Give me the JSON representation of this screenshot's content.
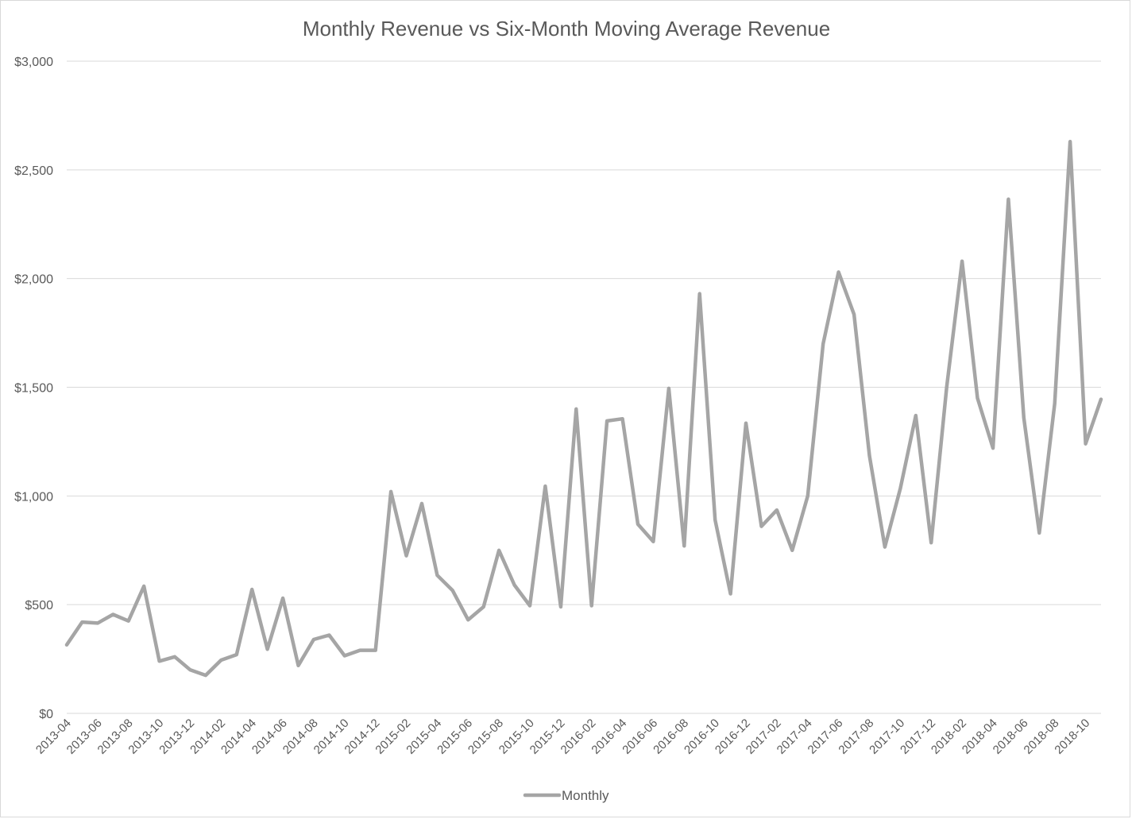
{
  "chart_data": {
    "type": "line",
    "title": "Monthly Revenue vs Six-Month Moving Average Revenue",
    "xlabel": "",
    "ylabel": "",
    "ylim": [
      0,
      3000
    ],
    "yticks": [
      "$0",
      "$500",
      "$1,000",
      "$1,500",
      "$2,000",
      "$2,500",
      "$3,000"
    ],
    "ytick_values": [
      0,
      500,
      1000,
      1500,
      2000,
      2500,
      3000
    ],
    "grid": true,
    "legend_position": "bottom",
    "series_color": "#a5a5a5",
    "x": [
      "2013-04",
      "2013-05",
      "2013-06",
      "2013-07",
      "2013-08",
      "2013-09",
      "2013-10",
      "2013-11",
      "2013-12",
      "2014-01",
      "2014-02",
      "2014-03",
      "2014-04",
      "2014-05",
      "2014-06",
      "2014-07",
      "2014-08",
      "2014-09",
      "2014-10",
      "2014-11",
      "2014-12",
      "2015-01",
      "2015-02",
      "2015-03",
      "2015-04",
      "2015-05",
      "2015-06",
      "2015-07",
      "2015-08",
      "2015-09",
      "2015-10",
      "2015-11",
      "2015-12",
      "2016-01",
      "2016-02",
      "2016-03",
      "2016-04",
      "2016-05",
      "2016-06",
      "2016-07",
      "2016-08",
      "2016-09",
      "2016-10",
      "2016-11",
      "2016-12",
      "2017-01",
      "2017-02",
      "2017-03",
      "2017-04",
      "2017-05",
      "2017-06",
      "2017-07",
      "2017-08",
      "2017-09",
      "2017-10",
      "2017-11",
      "2017-12",
      "2018-01",
      "2018-02",
      "2018-03",
      "2018-04",
      "2018-05",
      "2018-06",
      "2018-07",
      "2018-08",
      "2018-09",
      "2018-10",
      "2018-11"
    ],
    "xtick_labels": [
      "2013-04",
      "2013-06",
      "2013-08",
      "2013-10",
      "2013-12",
      "2014-02",
      "2014-04",
      "2014-06",
      "2014-08",
      "2014-10",
      "2014-12",
      "2015-02",
      "2015-04",
      "2015-06",
      "2015-08",
      "2015-10",
      "2015-12",
      "2016-02",
      "2016-04",
      "2016-06",
      "2016-08",
      "2016-10",
      "2016-12",
      "2017-02",
      "2017-04",
      "2017-06",
      "2017-08",
      "2017-10",
      "2017-12",
      "2018-02",
      "2018-04",
      "2018-06",
      "2018-08",
      "2018-10"
    ],
    "series": [
      {
        "name": "Monthly",
        "values": [
          315,
          420,
          415,
          455,
          425,
          585,
          240,
          260,
          200,
          175,
          245,
          270,
          570,
          295,
          530,
          220,
          340,
          360,
          265,
          290,
          290,
          1020,
          725,
          965,
          635,
          565,
          430,
          490,
          750,
          590,
          495,
          1045,
          490,
          1400,
          495,
          1345,
          1355,
          870,
          790,
          1495,
          770,
          1930,
          890,
          550,
          1335,
          860,
          935,
          750,
          1000,
          1700,
          2030,
          1835,
          1185,
          765,
          1035,
          1370,
          785,
          1500,
          2080,
          1450,
          1220,
          2365,
          1360,
          830,
          1425,
          2630,
          1240,
          1445
        ]
      }
    ]
  }
}
